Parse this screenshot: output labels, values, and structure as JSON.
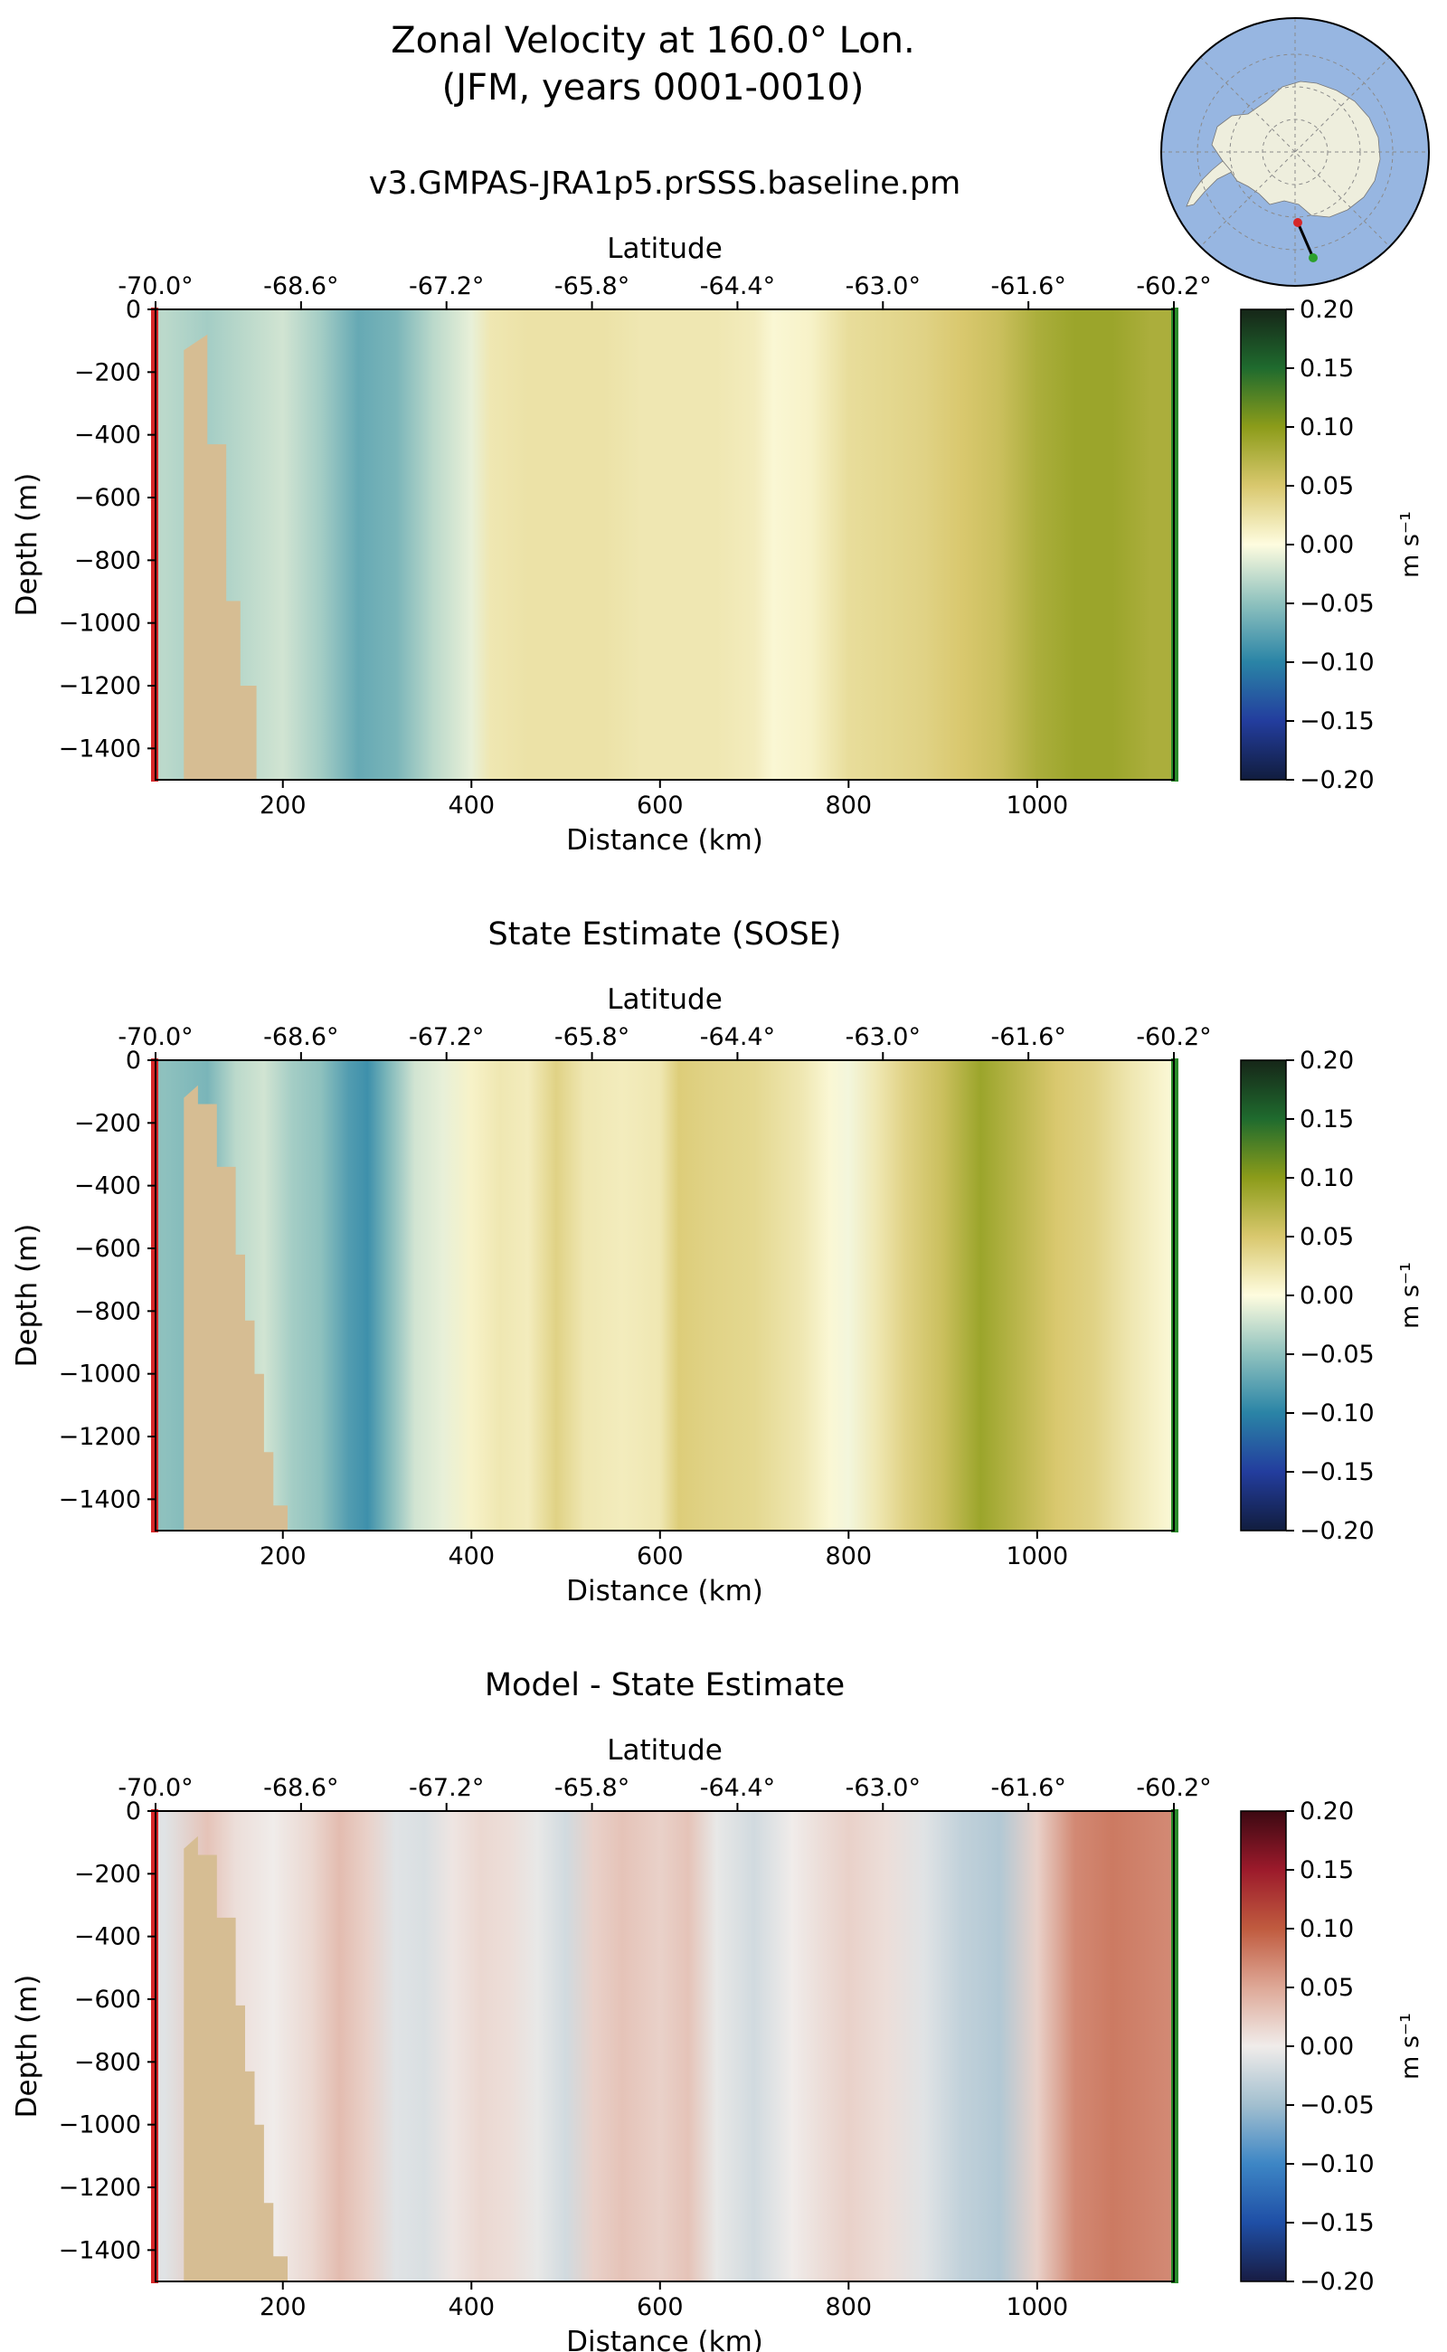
{
  "figure": {
    "title_line1": "Zonal Velocity at 160.0° Lon.",
    "title_line2": "(JFM, years 0001-0010)",
    "inset_map": {
      "type": "polar-stereographic-map",
      "region": "Antarctica",
      "land_color": "#eeeedd",
      "ocean_color": "#97b6e1",
      "transect_start_color": "#d62728",
      "transect_end_color": "#2ca02c"
    }
  },
  "chart_data": [
    {
      "type": "heatmap",
      "title": "v3.GMPAS-JRA1p5.prSSS.baseline.pm",
      "xlabel": "Distance (km)",
      "ylabel": "Depth (m)",
      "top_xlabel": "Latitude",
      "xlim": [
        65,
        1145
      ],
      "ylim": [
        -1500,
        0
      ],
      "x_ticks": [
        200,
        400,
        600,
        800,
        1000
      ],
      "x_tick_labels": [
        "200",
        "400",
        "600",
        "800",
        "1000"
      ],
      "y_ticks": [
        0,
        -200,
        -400,
        -600,
        -800,
        -1000,
        -1200,
        -1400
      ],
      "y_tick_labels": [
        "0",
        "−200",
        "−400",
        "−600",
        "−800",
        "−1000",
        "−1200",
        "−1400"
      ],
      "lat_tick_labels": [
        "-70.0°",
        "-68.6°",
        "-67.2°",
        "-65.8°",
        "-64.4°",
        "-63.0°",
        "-61.6°",
        "-60.2°"
      ],
      "colorbar": {
        "label": "m s⁻¹",
        "colormap": "cmo.delta",
        "range": [
          -0.2,
          0.2
        ],
        "ticks": [
          "0.20",
          "0.15",
          "0.10",
          "0.05",
          "0.00",
          "−0.05",
          "−0.10",
          "−0.15",
          "−0.20"
        ]
      },
      "profile_km": [
        75,
        120,
        160,
        200,
        240,
        280,
        320,
        360,
        400,
        420,
        460,
        500,
        540,
        580,
        620,
        660,
        700,
        720,
        760,
        800,
        840,
        880,
        920,
        960,
        1000,
        1040,
        1080,
        1120,
        1140
      ],
      "profile_velocity": [
        -0.03,
        -0.04,
        -0.03,
        -0.02,
        -0.04,
        -0.07,
        -0.06,
        -0.03,
        -0.01,
        0.02,
        0.025,
        0.025,
        0.025,
        0.02,
        0.02,
        0.02,
        0.015,
        0.005,
        0.01,
        0.03,
        0.035,
        0.04,
        0.05,
        0.06,
        0.08,
        0.09,
        0.09,
        0.08,
        0.08
      ],
      "bathymetry_km": [
        65,
        95,
        95,
        120,
        120,
        140,
        140,
        155,
        155,
        172,
        172
      ],
      "bathymetry_depth": [
        -1500,
        -1500,
        -130,
        -80,
        -430,
        -430,
        -930,
        -930,
        -1200,
        -1200,
        -1500
      ]
    },
    {
      "type": "heatmap",
      "title": "State Estimate (SOSE)",
      "xlabel": "Distance (km)",
      "ylabel": "Depth (m)",
      "top_xlabel": "Latitude",
      "xlim": [
        65,
        1145
      ],
      "ylim": [
        -1500,
        0
      ],
      "x_ticks": [
        200,
        400,
        600,
        800,
        1000
      ],
      "x_tick_labels": [
        "200",
        "400",
        "600",
        "800",
        "1000"
      ],
      "y_ticks": [
        0,
        -200,
        -400,
        -600,
        -800,
        -1000,
        -1200,
        -1400
      ],
      "y_tick_labels": [
        "0",
        "−200",
        "−400",
        "−600",
        "−800",
        "−1000",
        "−1200",
        "−1400"
      ],
      "lat_tick_labels": [
        "-70.0°",
        "-68.6°",
        "-67.2°",
        "-65.8°",
        "-64.4°",
        "-63.0°",
        "-61.6°",
        "-60.2°"
      ],
      "colorbar": {
        "label": "m s⁻¹",
        "colormap": "cmo.delta",
        "range": [
          -0.2,
          0.2
        ],
        "ticks": [
          "0.20",
          "0.15",
          "0.10",
          "0.05",
          "0.00",
          "−0.05",
          "−0.10",
          "−0.15",
          "−0.20"
        ]
      },
      "profile_km": [
        75,
        120,
        150,
        180,
        210,
        240,
        270,
        290,
        310,
        340,
        370,
        400,
        430,
        460,
        490,
        520,
        560,
        600,
        620,
        650,
        700,
        750,
        780,
        800,
        830,
        860,
        900,
        940,
        980,
        1020,
        1060,
        1100,
        1140
      ],
      "profile_velocity": [
        -0.05,
        -0.06,
        -0.03,
        -0.02,
        -0.04,
        -0.05,
        -0.08,
        -0.09,
        -0.06,
        -0.02,
        -0.01,
        0.01,
        0.02,
        0.015,
        0.04,
        0.02,
        0.015,
        0.02,
        0.045,
        0.04,
        0.035,
        0.02,
        0.005,
        -0.005,
        0.02,
        0.04,
        0.06,
        0.09,
        0.07,
        0.05,
        0.04,
        0.02,
        0.005
      ],
      "bathymetry_km": [
        65,
        95,
        95,
        110,
        110,
        130,
        130,
        150,
        150,
        160,
        160,
        170,
        170,
        180,
        180,
        190,
        190,
        205,
        205
      ],
      "bathymetry_depth": [
        -1500,
        -1500,
        -120,
        -80,
        -140,
        -140,
        -340,
        -340,
        -620,
        -620,
        -830,
        -830,
        -1000,
        -1000,
        -1250,
        -1250,
        -1420,
        -1420,
        -1500
      ]
    },
    {
      "type": "heatmap",
      "title": "Model - State Estimate",
      "xlabel": "Distance (km)",
      "ylabel": "Depth (m)",
      "top_xlabel": "Latitude",
      "xlim": [
        65,
        1145
      ],
      "ylim": [
        -1500,
        0
      ],
      "x_ticks": [
        200,
        400,
        600,
        800,
        1000
      ],
      "x_tick_labels": [
        "200",
        "400",
        "600",
        "800",
        "1000"
      ],
      "y_ticks": [
        0,
        -200,
        -400,
        -600,
        -800,
        -1000,
        -1200,
        -1400
      ],
      "y_tick_labels": [
        "0",
        "−200",
        "−400",
        "−600",
        "−800",
        "−1000",
        "−1200",
        "−1400"
      ],
      "lat_tick_labels": [
        "-70.0°",
        "-68.6°",
        "-67.2°",
        "-65.8°",
        "-64.4°",
        "-63.0°",
        "-61.6°",
        "-60.2°"
      ],
      "colorbar": {
        "label": "m s⁻¹",
        "colormap": "cmo.balance",
        "range": [
          -0.2,
          0.2
        ],
        "ticks": [
          "0.20",
          "0.15",
          "0.10",
          "0.05",
          "0.00",
          "−0.05",
          "−0.10",
          "−0.15",
          "−0.20"
        ]
      },
      "profile_km": [
        75,
        120,
        150,
        190,
        230,
        260,
        290,
        320,
        350,
        380,
        410,
        440,
        470,
        500,
        530,
        560,
        600,
        630,
        660,
        700,
        740,
        770,
        800,
        840,
        880,
        920,
        960,
        1000,
        1040,
        1080,
        1140
      ],
      "profile_velocity": [
        -0.01,
        0.03,
        0.01,
        0.0,
        0.015,
        0.035,
        0.02,
        -0.01,
        -0.015,
        0.005,
        0.015,
        0.01,
        -0.005,
        -0.02,
        0.02,
        0.03,
        0.02,
        0.03,
        -0.005,
        -0.02,
        0.0,
        0.01,
        0.02,
        0.01,
        -0.01,
        -0.03,
        -0.04,
        0.02,
        0.07,
        0.08,
        0.07
      ],
      "bathymetry_km": [
        65,
        95,
        95,
        110,
        110,
        130,
        130,
        150,
        150,
        160,
        160,
        170,
        170,
        180,
        180,
        190,
        190,
        205,
        205
      ],
      "bathymetry_depth": [
        -1500,
        -1500,
        -120,
        -80,
        -140,
        -140,
        -340,
        -340,
        -620,
        -620,
        -830,
        -830,
        -1000,
        -1000,
        -1250,
        -1250,
        -1420,
        -1420,
        -1500
      ]
    }
  ]
}
